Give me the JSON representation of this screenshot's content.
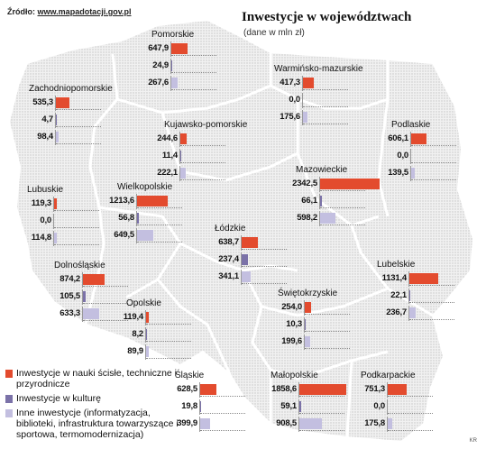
{
  "source": {
    "label": "Źródło:",
    "url": "www.mapadotacji.gov.pl"
  },
  "title": "Inwestycje w województwach",
  "subtitle": "(dane w mln zł)",
  "colors": {
    "nauki": "#e34b2e",
    "kultura": "#7b72a8",
    "inne": "#c3bfe0",
    "map_fill": "#eeeeee",
    "map_border": "#ffffff"
  },
  "legend": [
    {
      "label": "Inwestycje w nauki ścisłe, techniczne i przyrodnicze",
      "color": "#e34b2e"
    },
    {
      "label": "Inwestycje w kulturę",
      "color": "#7b72a8"
    },
    {
      "label": "Inne inwestycje (informatyzacja, biblioteki, infrastruktura towarzyszące i sportowa, termomodernizacja)",
      "color": "#c3bfe0"
    }
  ],
  "credit": "KR",
  "regions": [
    {
      "name": "Pomorskie",
      "values": [
        "647,9",
        "24,9",
        "267,6"
      ]
    },
    {
      "name": "Warmińsko-mazurskie",
      "values": [
        "417,3",
        "0,0",
        "175,6"
      ]
    },
    {
      "name": "Zachodniopomorskie",
      "values": [
        "535,3",
        "4,7",
        "98,4"
      ]
    },
    {
      "name": "Kujawsko-pomorskie",
      "values": [
        "244,6",
        "11,4",
        "222,1"
      ]
    },
    {
      "name": "Podlaskie",
      "values": [
        "606,1",
        "0,0",
        "139,5"
      ]
    },
    {
      "name": "Mazowieckie",
      "values": [
        "2342,5",
        "66,1",
        "598,2"
      ]
    },
    {
      "name": "Lubuskie",
      "values": [
        "119,3",
        "0,0",
        "114,8"
      ]
    },
    {
      "name": "Wielkopolskie",
      "values": [
        "1213,6",
        "56,8",
        "649,5"
      ]
    },
    {
      "name": "Łódzkie",
      "values": [
        "638,7",
        "237,4",
        "341,1"
      ]
    },
    {
      "name": "Dolnośląskie",
      "values": [
        "874,2",
        "105,5",
        "633,3"
      ]
    },
    {
      "name": "Lubelskie",
      "values": [
        "1131,4",
        "22,1",
        "236,7"
      ]
    },
    {
      "name": "Opolskie",
      "values": [
        "119,4",
        "8,2",
        "89,9"
      ]
    },
    {
      "name": "Świętokrzyskie",
      "values": [
        "254,0",
        "10,3",
        "199,6"
      ]
    },
    {
      "name": "Śląskie",
      "values": [
        "628,5",
        "19,8",
        "399,9"
      ]
    },
    {
      "name": "Małopolskie",
      "values": [
        "1858,6",
        "59,1",
        "908,5"
      ]
    },
    {
      "name": "Podkarpackie",
      "values": [
        "751,3",
        "0,0",
        "175,8"
      ]
    }
  ]
}
